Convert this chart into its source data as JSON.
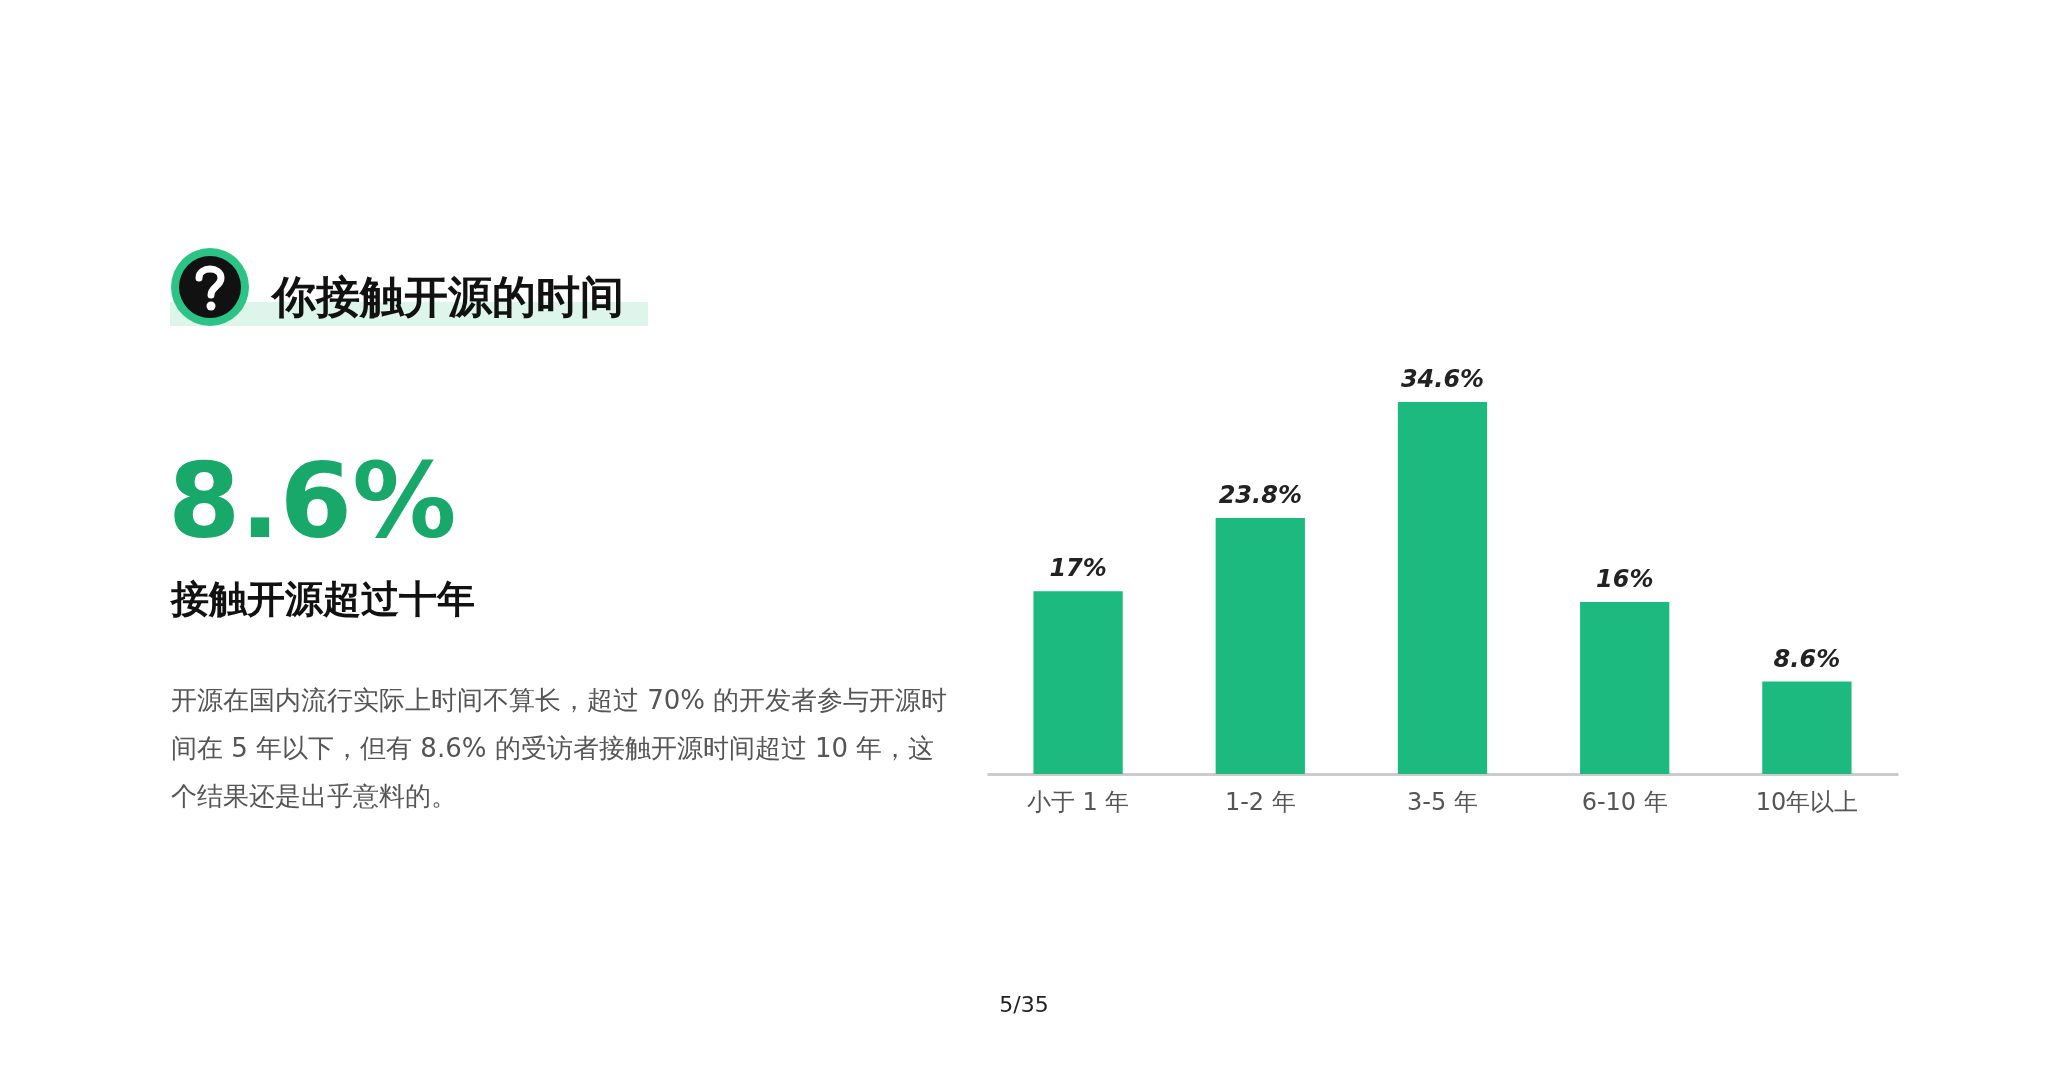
{
  "chart_data": {
    "type": "bar",
    "title": "你接触开源的时间",
    "categories": [
      "小于 1 年",
      "1-2 年",
      "3-5 年",
      "6-10 年",
      "10年以上"
    ],
    "values": [
      17,
      23.8,
      34.6,
      16,
      8.6
    ],
    "value_labels": [
      "17%",
      "23.8%",
      "34.6%",
      "16%",
      "8.6%"
    ],
    "color": "#1dba80",
    "annotations": [
      "8.6%",
      "接触开源超过十年",
      "开源在国内流行实际上时间不算长，超过 70% 的开发者参与开源时间在 5 年以下，但有 8.6% 的受访者接触开源时间超过 10 年，这个结果还是出乎意料的。",
      "5/35"
    ]
  }
}
